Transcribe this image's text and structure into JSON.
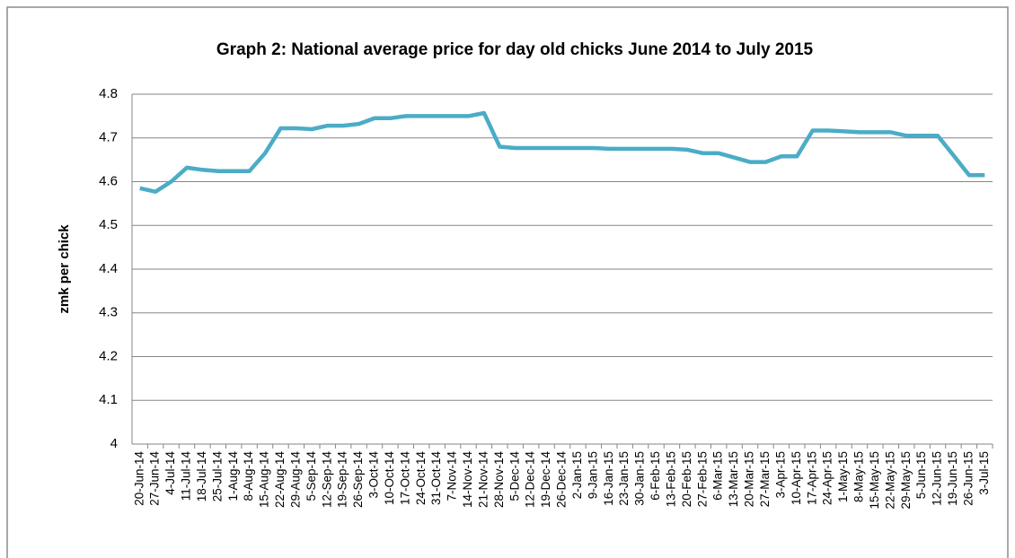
{
  "chart_data": {
    "type": "line",
    "title": "Graph 2: National average price for day old chicks June 2014 to July 2015",
    "y_label": "zmk per chick",
    "categories": [
      "20-Jun-14",
      "27-Jun-14",
      "4-Jul-14",
      "11-Jul-14",
      "18-Jul-14",
      "25-Jul-14",
      "1-Aug-14",
      "8-Aug-14",
      "15-Aug-14",
      "22-Aug-14",
      "29-Aug-14",
      "5-Sep-14",
      "12-Sep-14",
      "19-Sep-14",
      "26-Sep-14",
      "3-Oct-14",
      "10-Oct-14",
      "17-Oct-14",
      "24-Oct-14",
      "31-Oct-14",
      "7-Nov-14",
      "14-Nov-14",
      "21-Nov-14",
      "28-Nov-14",
      "5-Dec-14",
      "12-Dec-14",
      "19-Dec-14",
      "26-Dec-14",
      "2-Jan-15",
      "9-Jan-15",
      "16-Jan-15",
      "23-Jan-15",
      "30-Jan-15",
      "6-Feb-15",
      "13-Feb-15",
      "20-Feb-15",
      "27-Feb-15",
      "6-Mar-15",
      "13-Mar-15",
      "20-Mar-15",
      "27-Mar-15",
      "3-Apr-15",
      "10-Apr-15",
      "17-Apr-15",
      "24-Apr-15",
      "1-May-15",
      "8-May-15",
      "15-May-15",
      "22-May-15",
      "29-May-15",
      "5-Jun-15",
      "12-Jun-15",
      "19-Jun-15",
      "26-Jun-15",
      "3-Jul-15"
    ],
    "series": [
      {
        "name": "National average price",
        "color": "#4bacc6",
        "values": [
          4.585,
          4.577,
          4.6,
          4.632,
          4.627,
          4.624,
          4.624,
          4.624,
          4.665,
          4.722,
          4.722,
          4.72,
          4.728,
          4.728,
          4.732,
          4.745,
          4.745,
          4.75,
          4.75,
          4.75,
          4.75,
          4.75,
          4.757,
          4.68,
          4.677,
          4.677,
          4.677,
          4.677,
          4.677,
          4.677,
          4.675,
          4.675,
          4.675,
          4.675,
          4.675,
          4.673,
          4.665,
          4.665,
          4.655,
          4.645,
          4.645,
          4.658,
          4.658,
          4.717,
          4.717,
          4.715,
          4.713,
          4.713,
          4.713,
          4.705,
          4.705,
          4.705,
          4.66,
          4.615,
          4.615
        ]
      }
    ],
    "ylim": [
      4,
      4.8
    ],
    "yticks": [
      4,
      4.1,
      4.2,
      4.3,
      4.4,
      4.5,
      4.6,
      4.7,
      4.8
    ],
    "grid": true
  }
}
